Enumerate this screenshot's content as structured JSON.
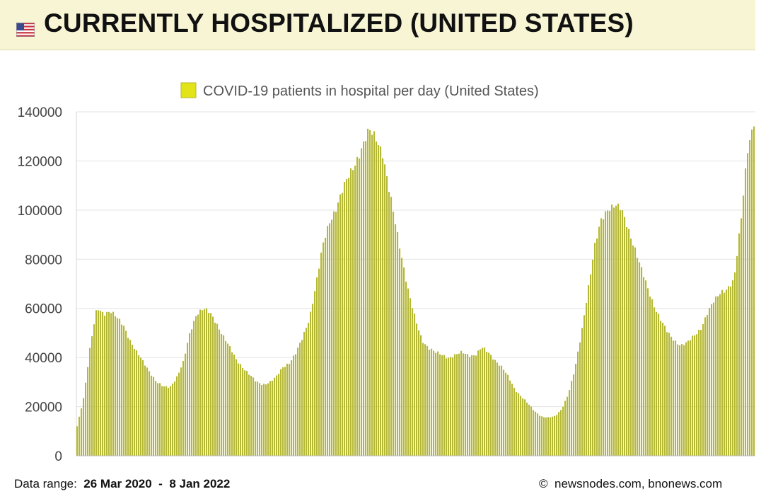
{
  "header": {
    "title": "CURRENTLY HOSPITALIZED (UNITED STATES)",
    "flag_icon": "us-flag-icon"
  },
  "footer": {
    "range_label": "Data range:",
    "range_start": "26 Mar 2020",
    "range_sep": "-",
    "range_end": "8 Jan 2022",
    "copyright_symbol": "©",
    "source": "newsnodes.com, bnonews.com"
  },
  "chart_data": {
    "type": "bar",
    "legend": "COVID-19 patients in hospital per day (United States)",
    "legend_position": "top-center",
    "bar_color": "#b5b834",
    "legend_color": "#e3e31a",
    "grid": true,
    "ylim": [
      0,
      140000
    ],
    "yticks": [
      "0",
      "20000",
      "40000",
      "60000",
      "80000",
      "100000",
      "120000",
      "140000"
    ],
    "x_start": "2020-03-26",
    "x_end": "2022-01-08",
    "series": [
      {
        "values": [
          12000,
          24000,
          45000,
          60000,
          58000,
          59000,
          56000,
          53000,
          47000,
          42000,
          38000,
          34000,
          30000,
          28000,
          28000,
          32000,
          38000,
          50000,
          58000,
          60000,
          58000,
          54000,
          49000,
          44000,
          39000,
          36000,
          33000,
          30000,
          29000,
          30000,
          32000,
          36000,
          38000,
          42000,
          48000,
          56000,
          70000,
          85000,
          95000,
          101000,
          108000,
          114000,
          120000,
          126000,
          132000,
          130000,
          124000,
          108000,
          94000,
          80000,
          66000,
          55000,
          47000,
          44000,
          42000,
          41000,
          40000,
          41000,
          42000,
          41000,
          41000,
          44000,
          42000,
          39000,
          36000,
          32000,
          27000,
          24000,
          21000,
          18000,
          16000,
          15500,
          16000,
          19000,
          25000,
          35000,
          50000,
          68000,
          85000,
          96000,
          101000,
          102000,
          100000,
          93000,
          85000,
          76000,
          68000,
          61000,
          55000,
          50000,
          47000,
          45000,
          46000,
          49000,
          52000,
          58000,
          63000,
          67000,
          68000,
          71000,
          95000,
          125000,
          135000
        ]
      }
    ]
  }
}
